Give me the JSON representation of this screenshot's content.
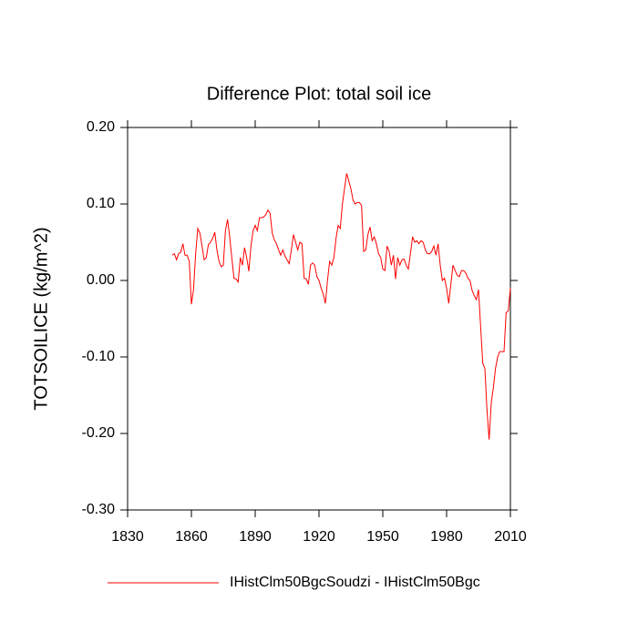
{
  "chart_data": {
    "type": "line",
    "title": "Difference Plot: total soil ice",
    "y_label": "TOTSOILICE  (kg/m^2)",
    "x": [
      1851,
      1852,
      1853,
      1854,
      1855,
      1856,
      1857,
      1858,
      1859,
      1860,
      1861,
      1862,
      1863,
      1864,
      1865,
      1866,
      1867,
      1868,
      1869,
      1870,
      1871,
      1872,
      1873,
      1874,
      1875,
      1876,
      1877,
      1878,
      1879,
      1880,
      1881,
      1882,
      1883,
      1884,
      1885,
      1886,
      1887,
      1888,
      1889,
      1890,
      1891,
      1892,
      1893,
      1894,
      1895,
      1896,
      1897,
      1898,
      1899,
      1900,
      1901,
      1902,
      1903,
      1904,
      1905,
      1906,
      1907,
      1908,
      1909,
      1910,
      1911,
      1912,
      1913,
      1914,
      1915,
      1916,
      1917,
      1918,
      1919,
      1920,
      1921,
      1922,
      1923,
      1924,
      1925,
      1926,
      1927,
      1928,
      1929,
      1930,
      1931,
      1932,
      1933,
      1934,
      1935,
      1936,
      1937,
      1938,
      1939,
      1940,
      1941,
      1942,
      1943,
      1944,
      1945,
      1946,
      1947,
      1948,
      1949,
      1950,
      1951,
      1952,
      1953,
      1954,
      1955,
      1956,
      1957,
      1958,
      1959,
      1960,
      1961,
      1962,
      1963,
      1964,
      1965,
      1966,
      1967,
      1968,
      1969,
      1970,
      1971,
      1972,
      1973,
      1974,
      1975,
      1976,
      1977,
      1978,
      1979,
      1980,
      1981,
      1982,
      1983,
      1984,
      1985,
      1986,
      1987,
      1988,
      1989,
      1990,
      1991,
      1992,
      1993,
      1994,
      1995,
      1996,
      1997,
      1998,
      1999,
      2000,
      2001,
      2002,
      2003,
      2004,
      2005,
      2006,
      2007,
      2008,
      2009,
      2010
    ],
    "series": [
      {
        "name": "IHistClm50BgcSoudzi - IHistClm50Bgc",
        "color": "#ff0000",
        "values": [
          0.033,
          0.035,
          0.027,
          0.035,
          0.037,
          0.048,
          0.033,
          0.033,
          0.025,
          -0.031,
          -0.012,
          0.035,
          0.068,
          0.062,
          0.045,
          0.027,
          0.03,
          0.047,
          0.05,
          0.055,
          0.063,
          0.04,
          0.025,
          0.018,
          0.02,
          0.065,
          0.08,
          0.057,
          0.03,
          0.003,
          0.002,
          -0.002,
          0.03,
          0.02,
          0.043,
          0.03,
          0.012,
          0.045,
          0.065,
          0.072,
          0.065,
          0.082,
          0.082,
          0.083,
          0.086,
          0.092,
          0.088,
          0.062,
          0.053,
          0.048,
          0.04,
          0.033,
          0.04,
          0.032,
          0.027,
          0.022,
          0.04,
          0.06,
          0.05,
          0.04,
          0.05,
          0.048,
          0.003,
          0.002,
          -0.005,
          0.02,
          0.023,
          0.02,
          0.005,
          0.0,
          -0.01,
          -0.018,
          -0.03,
          0.0,
          0.025,
          0.02,
          0.03,
          0.055,
          0.072,
          0.068,
          0.1,
          0.12,
          0.14,
          0.13,
          0.12,
          0.105,
          0.1,
          0.102,
          0.102,
          0.098,
          0.038,
          0.04,
          0.06,
          0.07,
          0.052,
          0.057,
          0.048,
          0.035,
          0.03,
          0.015,
          0.013,
          0.045,
          0.038,
          0.02,
          0.033,
          0.002,
          0.03,
          0.02,
          0.027,
          0.028,
          0.02,
          0.015,
          0.035,
          0.057,
          0.05,
          0.052,
          0.048,
          0.052,
          0.05,
          0.04,
          0.035,
          0.035,
          0.038,
          0.045,
          0.033,
          0.048,
          0.02,
          0.0,
          0.003,
          -0.01,
          -0.03,
          -0.005,
          0.02,
          0.013,
          0.007,
          0.005,
          0.013,
          0.013,
          0.01,
          0.003,
          0.0,
          -0.013,
          -0.02,
          -0.025,
          -0.012,
          -0.06,
          -0.108,
          -0.115,
          -0.17,
          -0.208,
          -0.16,
          -0.14,
          -0.115,
          -0.1,
          -0.093,
          -0.093,
          -0.093,
          -0.042,
          -0.04,
          -0.01
        ]
      }
    ],
    "xlim": [
      1830,
      2010
    ],
    "xticks": [
      1830,
      1860,
      1890,
      1920,
      1950,
      1980,
      2010
    ],
    "ylim": [
      -0.3,
      0.2
    ],
    "yticks": [
      {
        "value": 0.2,
        "label": "0.20"
      },
      {
        "value": 0.1,
        "label": "0.10"
      },
      {
        "value": 0,
        "label": "0.00"
      },
      {
        "value": -0.1,
        "label": "-0.10"
      },
      {
        "value": -0.2,
        "label": "-0.20"
      },
      {
        "value": -0.3,
        "label": "-0.30"
      }
    ]
  }
}
